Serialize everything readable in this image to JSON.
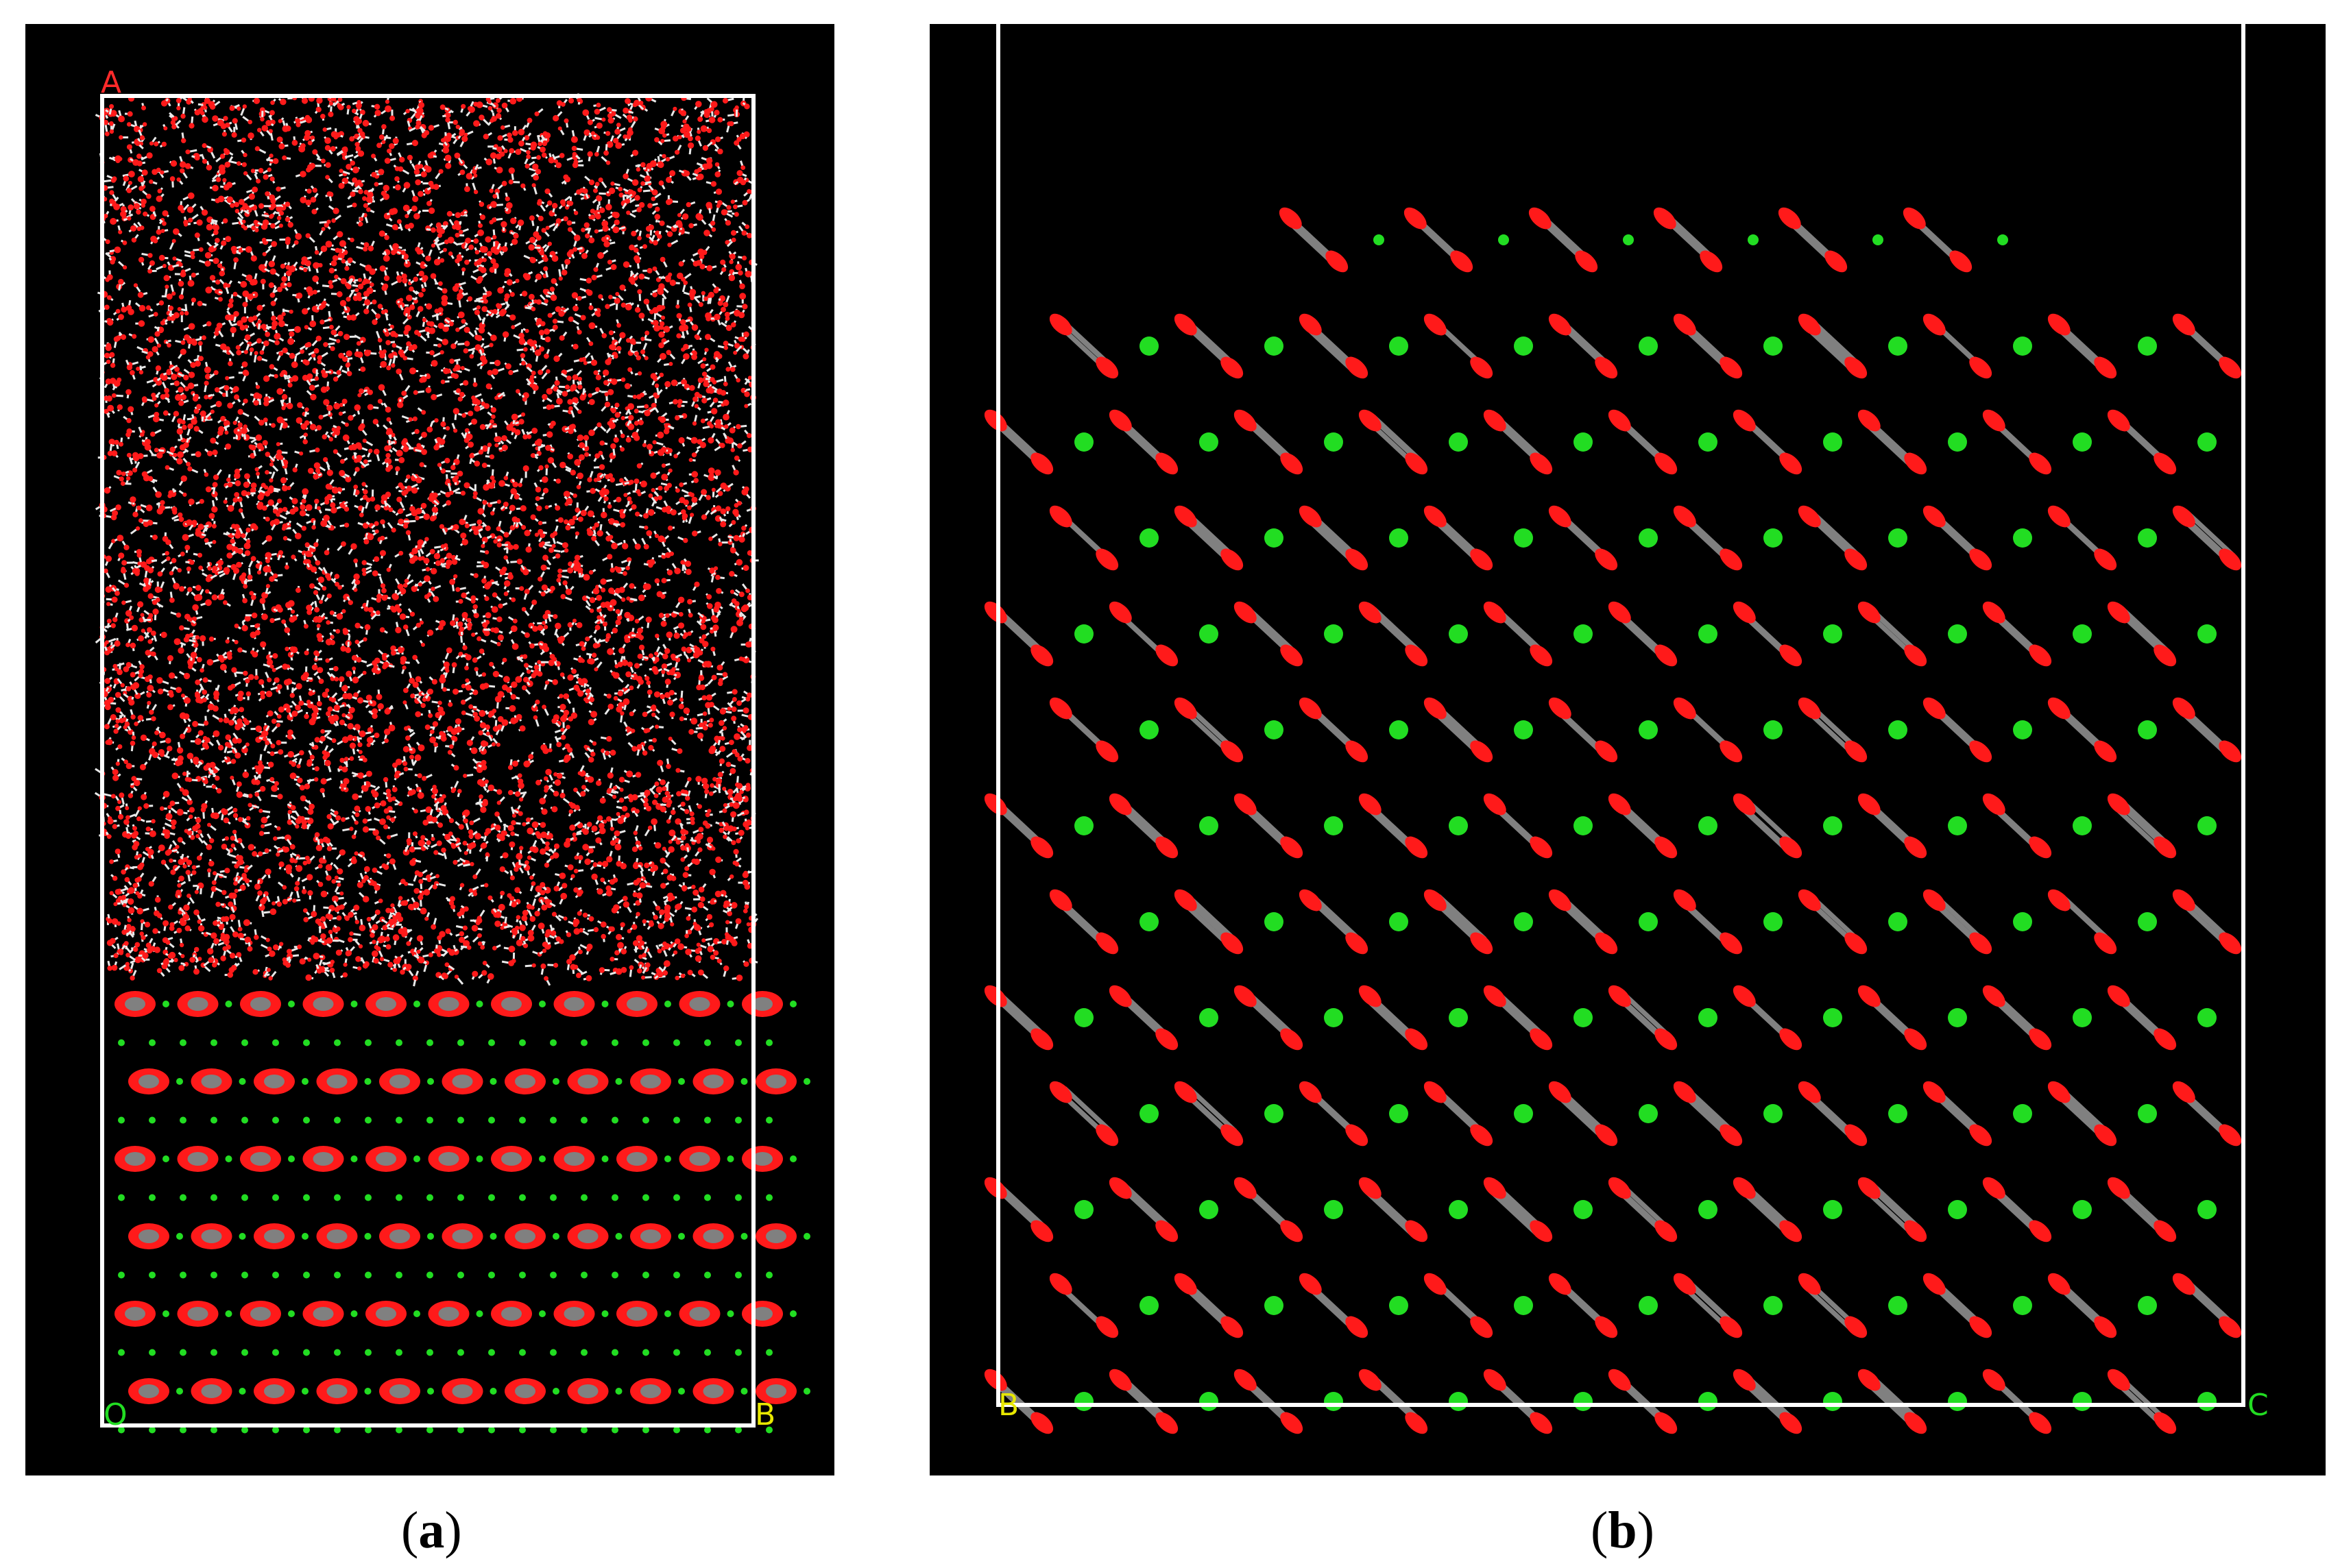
{
  "panel_a": {
    "corner_labels": {
      "top_left": "A",
      "bottom_left": "O",
      "bottom_right": "B"
    },
    "caption": {
      "open": "(",
      "letter": "a",
      "close": ")"
    }
  },
  "panel_b": {
    "corner_labels": {
      "bottom_left": "B",
      "bottom_right": "C"
    },
    "caption": {
      "open": "(",
      "letter": "b",
      "close": ")"
    }
  },
  "colors": {
    "background": "#000000",
    "cell_box": "#ffffff",
    "oxygen": "#ff1a1a",
    "hydrogen": "#e8e8e8",
    "carbon_chain": "#808080",
    "ion": "#22dd22",
    "label_A": "#ff2a2a",
    "label_O": "#22dd22",
    "label_B": "#e8e800",
    "label_C": "#22dd22"
  }
}
